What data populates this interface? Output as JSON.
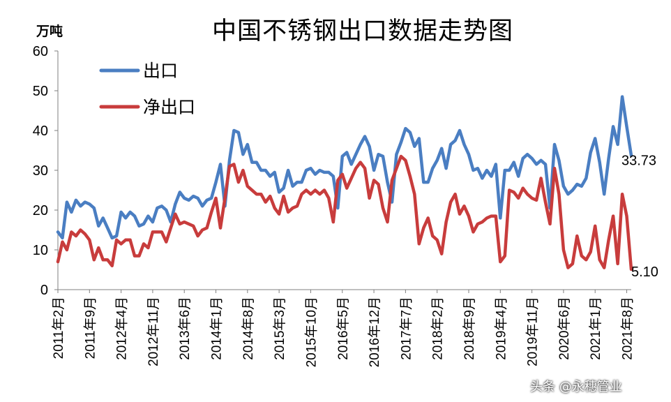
{
  "chart_data": {
    "type": "line",
    "title": "中国不锈钢出口数据走势图",
    "ylabel": "万吨",
    "ylim": [
      0,
      60
    ],
    "yticks": [
      "0",
      "10",
      "20",
      "30",
      "40",
      "50",
      "60"
    ],
    "xlabels": [
      "2011年2月",
      "2011年9月",
      "2012年4月",
      "2012年11月",
      "2013年6月",
      "2014年1月",
      "2014年8月",
      "2015年3月",
      "2015年10月",
      "2016年5月",
      "2016年12月",
      "2017年7月",
      "2018年2月",
      "2018年9月",
      "2019年4月",
      "2019年11月",
      "2020年6月",
      "2021年1月",
      "2021年8月"
    ],
    "x_start": "2011-02",
    "legend_position": "top-left",
    "grid": false,
    "series": [
      {
        "name": "出口",
        "color": "#4a7ec2",
        "end_label": "33.73",
        "values": [
          14.5,
          13.0,
          22.0,
          19.5,
          22.5,
          21.0,
          22.0,
          21.5,
          20.5,
          16.0,
          18.0,
          15.5,
          13.0,
          13.5,
          19.5,
          18.0,
          19.5,
          18.5,
          16.0,
          16.5,
          18.5,
          17.0,
          20.5,
          21.0,
          20.0,
          17.0,
          21.5,
          24.5,
          23.0,
          22.5,
          23.5,
          23.0,
          21.0,
          22.5,
          23.0,
          27.0,
          31.5,
          21.0,
          32.5,
          40.0,
          39.5,
          34.0,
          36.5,
          32.0,
          32.0,
          30.0,
          30.0,
          28.5,
          29.5,
          24.5,
          25.5,
          30.0,
          26.0,
          27.0,
          27.0,
          30.0,
          30.5,
          29.0,
          30.0,
          29.5,
          29.5,
          28.5,
          20.5,
          33.5,
          34.5,
          31.5,
          34.0,
          36.5,
          38.5,
          36.0,
          30.0,
          34.0,
          33.5,
          27.0,
          22.0,
          34.0,
          37.0,
          40.5,
          39.5,
          36.0,
          38.0,
          27.0,
          27.0,
          30.5,
          32.5,
          35.5,
          30.5,
          36.5,
          37.5,
          40.0,
          36.5,
          34.0,
          30.0,
          30.5,
          28.0,
          30.0,
          28.5,
          31.5,
          18.0,
          30.0,
          30.0,
          32.0,
          28.5,
          33.0,
          34.0,
          33.0,
          31.5,
          32.5,
          31.5,
          20.5,
          36.5,
          32.5,
          26.0,
          24.0,
          25.0,
          26.5,
          26.0,
          28.0,
          34.5,
          38.0,
          32.0,
          24.0,
          33.0,
          41.0,
          36.5,
          48.5,
          41.0,
          33.73
        ]
      },
      {
        "name": "净出口",
        "color": "#c83c3c",
        "end_label": "5.10",
        "values": [
          7.0,
          12.0,
          10.0,
          14.5,
          13.5,
          15.0,
          14.0,
          12.5,
          7.5,
          10.5,
          7.5,
          7.5,
          6.0,
          12.5,
          11.5,
          12.5,
          12.5,
          8.5,
          8.5,
          11.5,
          10.5,
          14.5,
          14.5,
          14.5,
          12.0,
          15.5,
          19.0,
          16.5,
          17.0,
          16.5,
          16.0,
          13.5,
          15.0,
          15.5,
          19.5,
          23.0,
          15.5,
          23.0,
          31.0,
          31.5,
          27.0,
          30.0,
          26.0,
          25.0,
          24.0,
          24.0,
          22.0,
          23.5,
          20.5,
          19.0,
          23.5,
          19.5,
          20.5,
          21.0,
          24.0,
          25.0,
          24.0,
          25.0,
          24.0,
          25.0,
          23.0,
          17.0,
          27.5,
          29.0,
          25.5,
          28.0,
          30.5,
          32.0,
          30.5,
          23.0,
          27.5,
          26.5,
          20.5,
          17.0,
          27.5,
          30.5,
          33.5,
          32.5,
          28.5,
          24.0,
          11.5,
          15.5,
          18.0,
          13.5,
          12.5,
          9.0,
          17.0,
          22.0,
          24.0,
          19.0,
          21.0,
          18.5,
          14.5,
          16.5,
          17.0,
          18.0,
          18.5,
          18.5,
          7.0,
          8.5,
          25.0,
          24.5,
          23.0,
          25.5,
          24.0,
          23.0,
          22.5,
          28.0,
          22.0,
          16.5,
          30.5,
          24.0,
          10.0,
          5.5,
          6.5,
          13.5,
          8.5,
          7.5,
          9.5,
          16.0,
          7.5,
          5.5,
          12.5,
          18.5,
          6.5,
          24.0,
          18.5,
          5.1
        ]
      }
    ]
  },
  "watermark": "头条 @永穗管业"
}
